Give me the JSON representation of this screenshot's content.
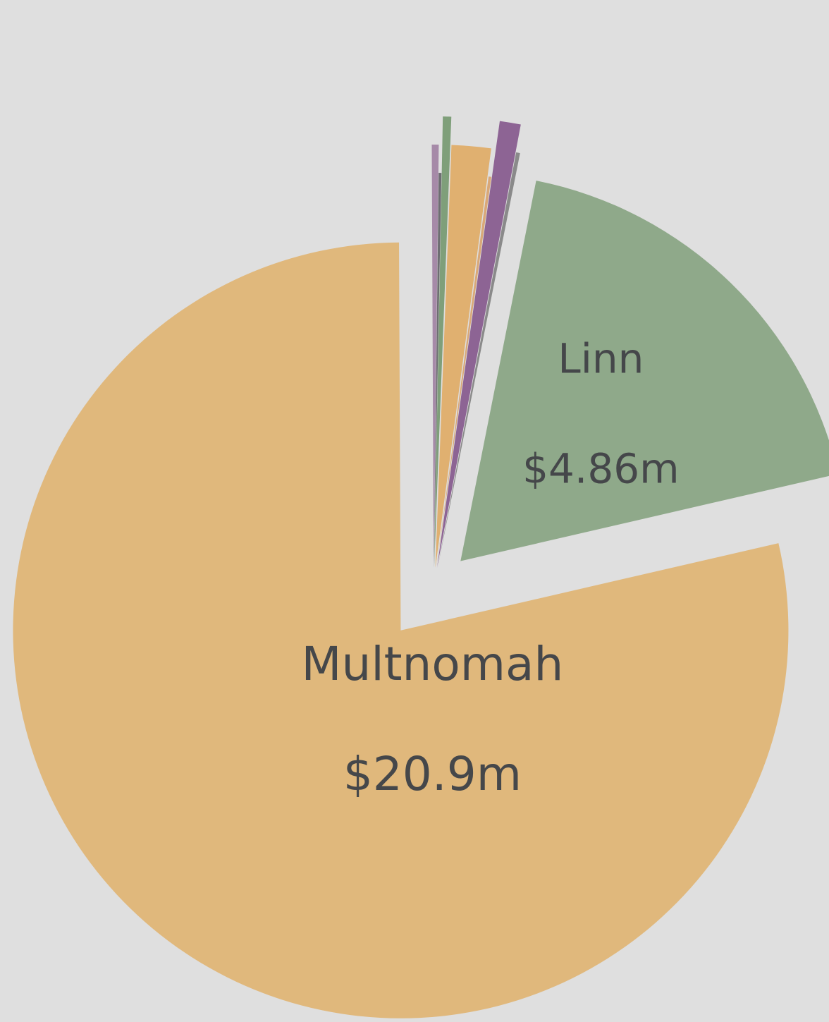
{
  "chart_data": {
    "type": "pie",
    "categories": [
      "Multnomah",
      null,
      null,
      null,
      null,
      null,
      null,
      null,
      "Linn"
    ],
    "values": [
      20.9,
      0.07,
      0.03,
      0.08,
      0.4,
      0.03,
      0.2,
      0.04,
      4.86
    ],
    "value_labels": [
      "$20.9m",
      null,
      null,
      null,
      null,
      null,
      null,
      null,
      "$4.86m"
    ],
    "colors": [
      "#e0b87c",
      "#a68aa8",
      "#6e6e72",
      "#7f9f7a",
      "#e0b070",
      "#d9a878",
      "#8d6494",
      "#8a8a8a",
      "#8fa98a"
    ]
  }
}
